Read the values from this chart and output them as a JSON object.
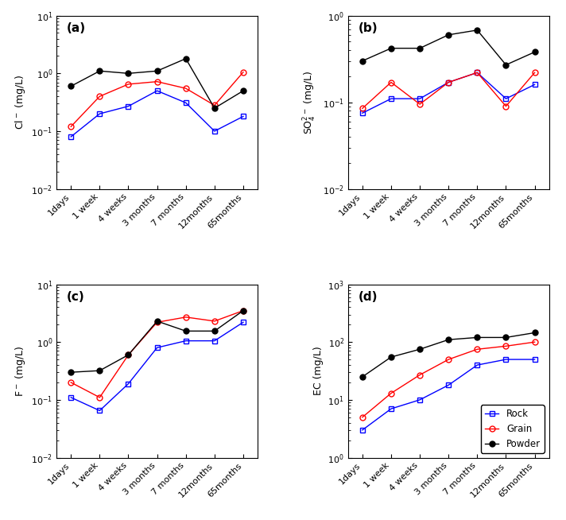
{
  "x_labels": [
    "1days",
    "1 week",
    "4 weeks",
    "3 months",
    "7 months",
    "12months",
    "65months"
  ],
  "panel_a": {
    "title": "(a)",
    "ylabel": "Cl$^-$ (mg/L)",
    "ylim": [
      0.01,
      10
    ],
    "rock": [
      0.08,
      0.2,
      0.27,
      0.5,
      0.31,
      0.1,
      0.18
    ],
    "grain": [
      0.12,
      0.4,
      0.65,
      0.72,
      0.55,
      0.28,
      1.05
    ],
    "powder": [
      0.6,
      1.1,
      1.0,
      1.1,
      1.8,
      0.25,
      0.5
    ]
  },
  "panel_b": {
    "title": "(b)",
    "ylabel": "SO$_4^{2-}$ (mg/L)",
    "ylim": [
      0.01,
      1
    ],
    "rock": [
      0.075,
      0.11,
      0.11,
      0.17,
      0.22,
      0.11,
      0.16
    ],
    "grain": [
      0.085,
      0.17,
      0.095,
      0.17,
      0.22,
      0.09,
      0.22
    ],
    "powder": [
      0.3,
      0.42,
      0.42,
      0.6,
      0.68,
      0.27,
      0.38
    ]
  },
  "panel_c": {
    "title": "(c)",
    "ylabel": "F$^-$ (mg/L)",
    "ylim": [
      0.01,
      10
    ],
    "rock": [
      0.11,
      0.065,
      0.19,
      0.8,
      1.05,
      1.05,
      2.2
    ],
    "grain": [
      0.2,
      0.11,
      0.6,
      2.2,
      2.7,
      2.3,
      3.5
    ],
    "powder": [
      0.3,
      0.32,
      0.6,
      2.3,
      1.55,
      1.55,
      3.5
    ]
  },
  "panel_d": {
    "title": "(d)",
    "ylabel": "EC (mg/L)",
    "ylim": [
      1,
      1000
    ],
    "rock": [
      3.0,
      7.0,
      10.0,
      18.0,
      40.0,
      50.0,
      50.0
    ],
    "grain": [
      5.0,
      13.0,
      27.0,
      50.0,
      75.0,
      85.0,
      100.0
    ],
    "powder": [
      25.0,
      55.0,
      75.0,
      110.0,
      120.0,
      120.0,
      145.0
    ]
  },
  "rock_color": "#0000FF",
  "grain_color": "#FF0000",
  "powder_color": "#000000",
  "rock_label": "Rock",
  "grain_label": "Grain",
  "powder_label": "Powder",
  "figsize": [
    7.12,
    6.54
  ],
  "dpi": 100
}
